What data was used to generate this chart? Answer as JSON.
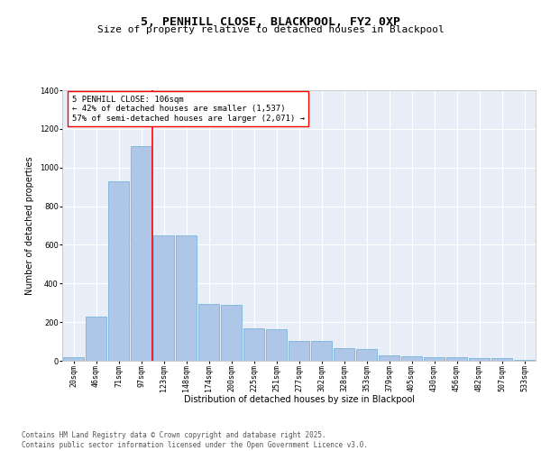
{
  "title1": "5, PENHILL CLOSE, BLACKPOOL, FY2 0XP",
  "title2": "Size of property relative to detached houses in Blackpool",
  "xlabel": "Distribution of detached houses by size in Blackpool",
  "ylabel": "Number of detached properties",
  "bar_color": "#aec6e8",
  "bar_edge_color": "#6aaad4",
  "background_color": "#e8eef8",
  "grid_color": "#ffffff",
  "categories": [
    "20sqm",
    "46sqm",
    "71sqm",
    "97sqm",
    "123sqm",
    "148sqm",
    "174sqm",
    "200sqm",
    "225sqm",
    "251sqm",
    "277sqm",
    "302sqm",
    "328sqm",
    "353sqm",
    "379sqm",
    "405sqm",
    "430sqm",
    "456sqm",
    "482sqm",
    "507sqm",
    "533sqm"
  ],
  "values": [
    18,
    228,
    930,
    1110,
    650,
    648,
    295,
    290,
    168,
    165,
    105,
    105,
    65,
    60,
    30,
    25,
    18,
    18,
    12,
    12,
    3
  ],
  "ylim": [
    0,
    1400
  ],
  "yticks": [
    0,
    200,
    400,
    600,
    800,
    1000,
    1200,
    1400
  ],
  "property_label": "5 PENHILL CLOSE: 106sqm",
  "annotation_left": "← 42% of detached houses are smaller (1,537)",
  "annotation_right": "57% of semi-detached houses are larger (2,071) →",
  "red_line_bin_index": 3,
  "footer1": "Contains HM Land Registry data © Crown copyright and database right 2025.",
  "footer2": "Contains public sector information licensed under the Open Government Licence v3.0.",
  "title_fontsize": 9.5,
  "subtitle_fontsize": 8,
  "axis_label_fontsize": 7,
  "tick_fontsize": 6,
  "annotation_fontsize": 6.5,
  "footer_fontsize": 5.5
}
